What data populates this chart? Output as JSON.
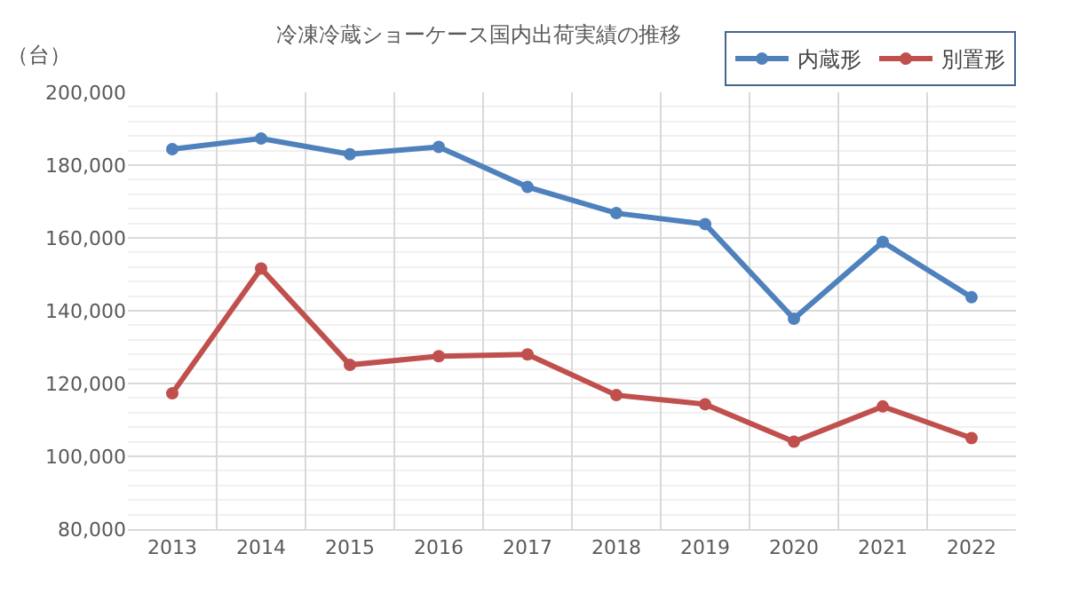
{
  "chart_data": {
    "type": "line",
    "title": "冷凍冷蔵ショーケース国内出荷実績の推移",
    "ylabel": "（台）",
    "categories": [
      "2013",
      "2014",
      "2015",
      "2016",
      "2017",
      "2018",
      "2019",
      "2020",
      "2021",
      "2022"
    ],
    "series": [
      {
        "name": "内蔵形",
        "color": "#4f81bd",
        "values": [
          184400,
          187300,
          183000,
          185000,
          174000,
          166800,
          163800,
          137800,
          158900,
          143700
        ]
      },
      {
        "name": "別置形",
        "color": "#c0504d",
        "values": [
          117300,
          151600,
          125100,
          127500,
          128000,
          116800,
          114300,
          104000,
          113700,
          105000
        ]
      }
    ],
    "ylim": [
      80000,
      200000
    ],
    "yticks": [
      {
        "value": 80000,
        "label": "80,000"
      },
      {
        "value": 100000,
        "label": "100,000"
      },
      {
        "value": 120000,
        "label": "120,000"
      },
      {
        "value": 140000,
        "label": "140,000"
      },
      {
        "value": 160000,
        "label": "160,000"
      },
      {
        "value": 180000,
        "label": "180,000"
      },
      {
        "value": 200000,
        "label": "200,000"
      }
    ],
    "grid": true,
    "legend": "top right",
    "marker": "circle",
    "line_style": "solid"
  }
}
